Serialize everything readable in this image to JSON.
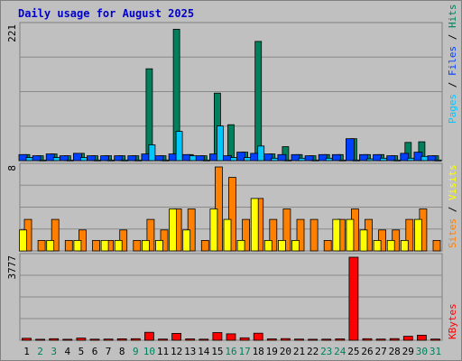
{
  "title": "Daily usage for August 2025",
  "colors": {
    "hits": "#00805c",
    "files": "#0040ff",
    "pages": "#00c8ff",
    "visits": "#ff8000",
    "sites": "#ffff00",
    "kbytes": "#ff0000",
    "weekend_label": "#00805c",
    "weekday_label": "#000000"
  },
  "chart_data": [
    {
      "type": "bar",
      "panel": "top",
      "right_label": [
        "Pages",
        "Files",
        "Hits"
      ],
      "y_max_label": "221",
      "ylim": [
        0,
        221
      ],
      "categories": [
        "1",
        "2",
        "3",
        "4",
        "5",
        "6",
        "7",
        "8",
        "9",
        "10",
        "11",
        "12",
        "13",
        "14",
        "15",
        "16",
        "17",
        "18",
        "19",
        "20",
        "21",
        "22",
        "23",
        "24",
        "25",
        "26",
        "27",
        "28",
        "29",
        "30",
        "31"
      ],
      "weekend": [
        "2",
        "3",
        "9",
        "10",
        "16",
        "17",
        "23",
        "24",
        "30",
        "31"
      ],
      "series": [
        {
          "name": "Hits",
          "values": [
            10,
            8,
            11,
            8,
            12,
            8,
            8,
            8,
            8,
            151,
            8,
            216,
            10,
            8,
            111,
            59,
            14,
            196,
            11,
            23,
            10,
            8,
            10,
            10,
            36,
            10,
            10,
            8,
            30,
            31,
            8
          ]
        },
        {
          "name": "Files",
          "values": [
            10,
            8,
            11,
            8,
            12,
            8,
            8,
            8,
            8,
            11,
            8,
            11,
            10,
            8,
            11,
            8,
            14,
            12,
            11,
            10,
            10,
            8,
            10,
            10,
            36,
            10,
            10,
            8,
            12,
            14,
            8
          ]
        },
        {
          "name": "Pages",
          "values": [
            5,
            1,
            5,
            1,
            5,
            1,
            1,
            1,
            1,
            26,
            1,
            48,
            8,
            1,
            57,
            5,
            5,
            24,
            4,
            1,
            4,
            1,
            4,
            1,
            1,
            3,
            4,
            1,
            4,
            7,
            1
          ]
        }
      ]
    },
    {
      "type": "bar",
      "panel": "middle",
      "right_label": [
        "Sites",
        "Visits"
      ],
      "y_max_label": "8",
      "ylim": [
        0,
        8
      ],
      "categories": [
        "1",
        "2",
        "3",
        "4",
        "5",
        "6",
        "7",
        "8",
        "9",
        "10",
        "11",
        "12",
        "13",
        "14",
        "15",
        "16",
        "17",
        "18",
        "19",
        "20",
        "21",
        "22",
        "23",
        "24",
        "25",
        "26",
        "27",
        "28",
        "29",
        "30",
        "31"
      ],
      "series": [
        {
          "name": "Visits",
          "values": [
            3,
            1,
            3,
            1,
            2,
            1,
            1,
            2,
            1,
            3,
            2,
            4,
            4,
            1,
            8,
            7,
            3,
            5,
            3,
            4,
            3,
            3,
            1,
            3,
            4,
            3,
            2,
            2,
            3,
            4,
            1
          ]
        },
        {
          "name": "Sites",
          "values": [
            2,
            0,
            1,
            0,
            1,
            0,
            1,
            1,
            0,
            1,
            1,
            4,
            2,
            0,
            4,
            3,
            1,
            5,
            1,
            1,
            1,
            0,
            0,
            3,
            3,
            2,
            1,
            1,
            1,
            3,
            0
          ]
        }
      ]
    },
    {
      "type": "bar",
      "panel": "bottom",
      "right_label": [
        "KBytes"
      ],
      "y_max_label": "3777",
      "ylim": [
        0,
        3777
      ],
      "categories": [
        "1",
        "2",
        "3",
        "4",
        "5",
        "6",
        "7",
        "8",
        "9",
        "10",
        "11",
        "12",
        "13",
        "14",
        "15",
        "16",
        "17",
        "18",
        "19",
        "20",
        "21",
        "22",
        "23",
        "24",
        "25",
        "26",
        "27",
        "28",
        "29",
        "30",
        "31"
      ],
      "series": [
        {
          "name": "KBytes",
          "values": [
            90,
            45,
            70,
            45,
            100,
            50,
            55,
            65,
            70,
            360,
            55,
            310,
            60,
            50,
            350,
            290,
            110,
            320,
            60,
            75,
            55,
            45,
            50,
            60,
            3777,
            70,
            55,
            75,
            180,
            230,
            55
          ]
        }
      ]
    }
  ]
}
